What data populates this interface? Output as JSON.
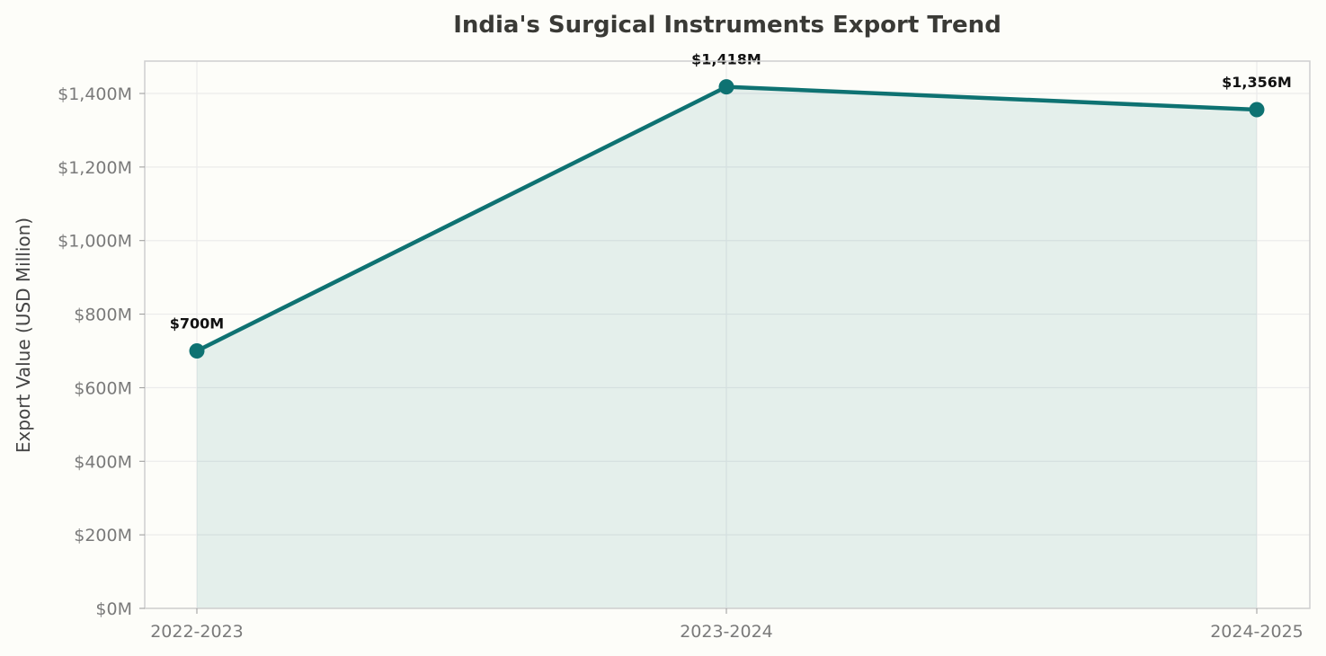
{
  "chart_data": {
    "type": "area",
    "title": "India's Surgical Instruments Export Trend",
    "xlabel": "",
    "ylabel": "Export Value (USD Million)",
    "categories": [
      "2022-2023",
      "2023-2024",
      "2024-2025"
    ],
    "values": [
      700,
      1418,
      1356
    ],
    "data_labels": [
      "$700M",
      "$1,418M",
      "$1,356M"
    ],
    "ylim": [
      0,
      1488
    ],
    "yticks": [
      0,
      200,
      400,
      600,
      800,
      1000,
      1200,
      1400
    ],
    "ytick_labels": [
      "$0M",
      "$200M",
      "$400M",
      "$600M",
      "$800M",
      "$1,000M",
      "$1,200M",
      "$1,400M"
    ],
    "grid": true,
    "legend": "none",
    "colors": {
      "line": "#0e7272",
      "fill": "#0e7272",
      "background": "#fdfdf9"
    }
  }
}
